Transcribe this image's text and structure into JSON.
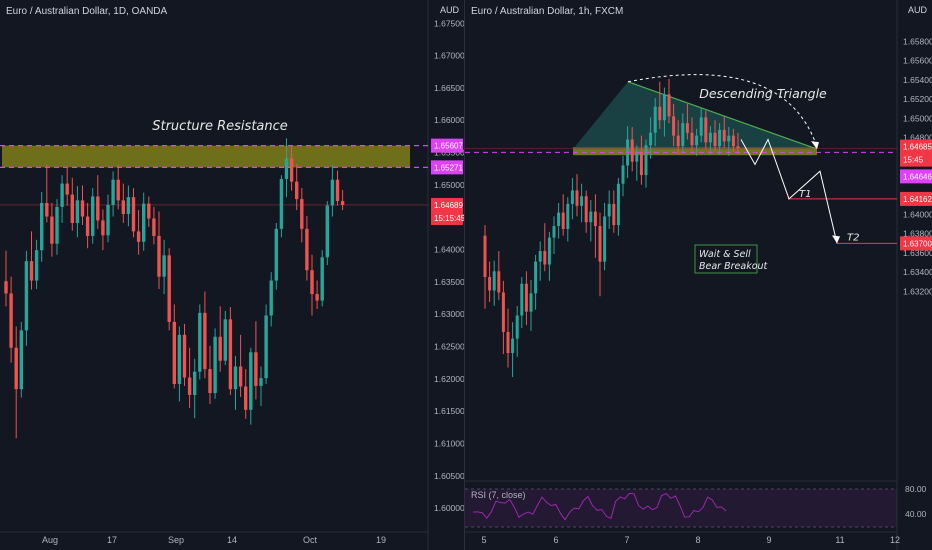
{
  "left_chart": {
    "title": "Euro / Australian Dollar, 1D, OANDA",
    "currency": "AUD",
    "annotation": "Structure Resistance",
    "price_tags": [
      {
        "value": "1.65607",
        "color": "#e040fb",
        "text_color": "#ffffff"
      },
      {
        "value": "1.65271",
        "color": "#e040fb",
        "text_color": "#ffffff"
      },
      {
        "value": "1.64689",
        "color": "#f23645",
        "text_color": "#ffffff"
      },
      {
        "value": "15:15:45",
        "color": "#f23645",
        "text_color": "#ffffff"
      }
    ]
  },
  "right_chart": {
    "title": "Euro / Australian Dollar, 1h, FXCM",
    "currency": "AUD",
    "pattern_label": "Descending Triangle",
    "note_line1": "Wait & Sell",
    "note_line2": "Bear Breakout",
    "target1": "T1",
    "target2": "T2",
    "rsi_label": "RSI (7, close)",
    "price_tags": [
      {
        "value": "1.64685",
        "color": "#f23645",
        "text_color": "#ffffff"
      },
      {
        "value": "15:45",
        "color": "#f23645",
        "text_color": "#ffffff"
      },
      {
        "value": "1.64646",
        "color": "#e040fb",
        "text_color": "#ffffff"
      },
      {
        "value": "1.64162",
        "color": "#f23645",
        "text_color": "#ffffff"
      },
      {
        "value": "1.63700",
        "color": "#f23645",
        "text_color": "#ffffff"
      }
    ],
    "rsi_ticks": [
      "80.00",
      "40.00"
    ]
  },
  "colors": {
    "up": "#26a69a",
    "down": "#ef5350",
    "zone_fill": "#8d8e1a",
    "zone_dash": "#e040fb",
    "triangle_fill": "#1e5e5a",
    "triangle_edge": "#4caf50",
    "rsi": "#9c27b0"
  },
  "chart_data": [
    {
      "type": "candlestick",
      "title": "Euro / Australian Dollar, 1D, OANDA",
      "ylabel": "AUD",
      "ylim": [
        1.5963,
        1.6786
      ],
      "y_ticks": [
        1.6,
        1.605,
        1.61,
        1.615,
        1.62,
        1.625,
        1.63,
        1.635,
        1.64,
        1.645,
        1.65,
        1.655,
        1.66,
        1.665,
        1.67,
        1.675
      ],
      "x_ticks": [
        "Aug",
        "17",
        "Sep",
        "14",
        "Oct",
        "19"
      ],
      "zones": [
        {
          "label": "Structure Resistance",
          "from": 1.65271,
          "to": 1.65607
        }
      ],
      "levels": [
        {
          "value": 1.64689,
          "label": "1.64689"
        }
      ],
      "series": [
        {
          "name": "EURAUD",
          "ohlc": [
            [
              1.6351,
              1.6398,
              1.6312,
              1.6332
            ],
            [
              1.6332,
              1.6358,
              1.6225,
              1.6248
            ],
            [
              1.6248,
              1.6281,
              1.6108,
              1.6184
            ],
            [
              1.6184,
              1.6288,
              1.6171,
              1.6275
            ],
            [
              1.6275,
              1.6398,
              1.6251,
              1.6382
            ],
            [
              1.6382,
              1.6428,
              1.6338,
              1.6352
            ],
            [
              1.6352,
              1.6415,
              1.6339,
              1.6399
            ],
            [
              1.6399,
              1.6489,
              1.6381,
              1.6472
            ],
            [
              1.6472,
              1.6531,
              1.6442,
              1.6451
            ],
            [
              1.6451,
              1.6472,
              1.6389,
              1.6409
            ],
            [
              1.6409,
              1.6478,
              1.6392,
              1.6466
            ],
            [
              1.6466,
              1.6515,
              1.6441,
              1.6502
            ],
            [
              1.6502,
              1.6528,
              1.6468,
              1.6485
            ],
            [
              1.6485,
              1.6511,
              1.6429,
              1.6441
            ],
            [
              1.6441,
              1.6498,
              1.6419,
              1.6476
            ],
            [
              1.6476,
              1.6499,
              1.6438,
              1.6451
            ],
            [
              1.6451,
              1.6472,
              1.6402,
              1.6421
            ],
            [
              1.6421,
              1.6495,
              1.6409,
              1.6482
            ],
            [
              1.6482,
              1.6515,
              1.6432,
              1.6445
            ],
            [
              1.6445,
              1.6462,
              1.6399,
              1.6422
            ],
            [
              1.6422,
              1.6485,
              1.6411,
              1.6469
            ],
            [
              1.6469,
              1.6521,
              1.6451,
              1.6508
            ],
            [
              1.6508,
              1.6531,
              1.6462,
              1.6476
            ],
            [
              1.6476,
              1.6502,
              1.6441,
              1.6455
            ],
            [
              1.6455,
              1.6499,
              1.6436,
              1.6481
            ],
            [
              1.6481,
              1.6495,
              1.6419,
              1.6428
            ],
            [
              1.6428,
              1.6461,
              1.6392,
              1.6412
            ],
            [
              1.6412,
              1.6488,
              1.6398,
              1.6471
            ],
            [
              1.6471,
              1.6482,
              1.6435,
              1.6448
            ],
            [
              1.6448,
              1.6466,
              1.6408,
              1.6421
            ],
            [
              1.6421,
              1.6459,
              1.6339,
              1.6358
            ],
            [
              1.6358,
              1.6415,
              1.6331,
              1.6391
            ],
            [
              1.6391,
              1.6402,
              1.6275,
              1.6288
            ],
            [
              1.6288,
              1.6315,
              1.6185,
              1.6192
            ],
            [
              1.6192,
              1.6281,
              1.6165,
              1.6268
            ],
            [
              1.6268,
              1.6285,
              1.6189,
              1.6202
            ],
            [
              1.6202,
              1.6248,
              1.6155,
              1.6175
            ],
            [
              1.6175,
              1.6231,
              1.6139,
              1.6211
            ],
            [
              1.6211,
              1.6315,
              1.6199,
              1.6302
            ],
            [
              1.6302,
              1.6335,
              1.6201,
              1.6215
            ],
            [
              1.6215,
              1.6251,
              1.6161,
              1.6178
            ],
            [
              1.6178,
              1.6278,
              1.6169,
              1.6265
            ],
            [
              1.6265,
              1.6312,
              1.6211,
              1.6228
            ],
            [
              1.6228,
              1.6305,
              1.6221,
              1.6292
            ],
            [
              1.6292,
              1.6311,
              1.6175,
              1.6184
            ],
            [
              1.6184,
              1.6235,
              1.6152,
              1.6219
            ],
            [
              1.6219,
              1.6268,
              1.6172,
              1.6188
            ],
            [
              1.6188,
              1.6215,
              1.6138,
              1.6152
            ],
            [
              1.6152,
              1.6248,
              1.6129,
              1.6241
            ],
            [
              1.6241,
              1.6289,
              1.6168,
              1.6189
            ],
            [
              1.6189,
              1.6219,
              1.6158,
              1.6201
            ],
            [
              1.6201,
              1.6315,
              1.6192,
              1.6298
            ],
            [
              1.6298,
              1.6365,
              1.6281,
              1.6352
            ],
            [
              1.6352,
              1.6441,
              1.6338,
              1.6432
            ],
            [
              1.6432,
              1.6515,
              1.6419,
              1.6509
            ],
            [
              1.6509,
              1.6572,
              1.6481,
              1.6541
            ],
            [
              1.6541,
              1.6561,
              1.6491,
              1.6505
            ],
            [
              1.6505,
              1.6532,
              1.6461,
              1.6478
            ],
            [
              1.6478,
              1.6495,
              1.6411,
              1.6432
            ],
            [
              1.6432,
              1.6452,
              1.6352,
              1.6368
            ],
            [
              1.6368,
              1.6392,
              1.6298,
              1.6331
            ],
            [
              1.6331,
              1.6352,
              1.6308,
              1.6321
            ],
            [
              1.6321,
              1.6399,
              1.6312,
              1.6388
            ],
            [
              1.6388,
              1.6475,
              1.6376,
              1.6468
            ],
            [
              1.6468,
              1.6531,
              1.6451,
              1.6508
            ],
            [
              1.6508,
              1.6522,
              1.6468,
              1.6475
            ],
            [
              1.6475,
              1.6492,
              1.6461,
              1.6469
            ]
          ]
        }
      ]
    },
    {
      "type": "candlestick",
      "title": "Euro / Australian Dollar, 1h, FXCM",
      "ylabel": "AUD",
      "ylim": [
        1.6124,
        1.6623
      ],
      "y_ticks": [
        1.632,
        1.634,
        1.636,
        1.638,
        1.64,
        1.642,
        1.644,
        1.646,
        1.648,
        1.65,
        1.652,
        1.654,
        1.656,
        1.658
      ],
      "x_ticks": [
        "5",
        "6",
        "7",
        "8",
        "9",
        "11",
        "12"
      ],
      "annotations": [
        "Descending Triangle",
        "Wait & Sell Bear Breakout",
        "T1",
        "T2"
      ],
      "zones": [
        {
          "from": 1.6462,
          "to": 1.647
        }
      ],
      "levels": [
        {
          "value": 1.64685,
          "label": "1.64685"
        },
        {
          "value": 1.64646,
          "label": "1.64646"
        },
        {
          "value": 1.64162,
          "label": "1.64162"
        },
        {
          "value": 1.637,
          "label": "1.63700"
        }
      ],
      "series": [
        {
          "name": "EURAUD",
          "ohlc": [
            [
              1.6378,
              1.6389,
              1.6302,
              1.6335
            ],
            [
              1.6335,
              1.6351,
              1.6309,
              1.6321
            ],
            [
              1.6321,
              1.6352,
              1.6305,
              1.6341
            ],
            [
              1.6341,
              1.6362,
              1.6311,
              1.6319
            ],
            [
              1.6319,
              1.6331,
              1.6255,
              1.6278
            ],
            [
              1.6278,
              1.6302,
              1.6241,
              1.6256
            ],
            [
              1.6256,
              1.6288,
              1.6231,
              1.6271
            ],
            [
              1.6271,
              1.6305,
              1.6252,
              1.6295
            ],
            [
              1.6295,
              1.6335,
              1.6282,
              1.6328
            ],
            [
              1.6328,
              1.6341,
              1.6285,
              1.6299
            ],
            [
              1.6299,
              1.6332,
              1.6279,
              1.6318
            ],
            [
              1.6318,
              1.6358,
              1.6301,
              1.6351
            ],
            [
              1.6351,
              1.6372,
              1.6331,
              1.6362
            ],
            [
              1.6362,
              1.6391,
              1.6341,
              1.6348
            ],
            [
              1.6348,
              1.6382,
              1.6331,
              1.6376
            ],
            [
              1.6376,
              1.6398,
              1.6359,
              1.6388
            ],
            [
              1.6388,
              1.6412,
              1.6375,
              1.6402
            ],
            [
              1.6402,
              1.6421,
              1.6378,
              1.6385
            ],
            [
              1.6385,
              1.6418,
              1.6372,
              1.6411
            ],
            [
              1.6411,
              1.6438,
              1.6395,
              1.6425
            ],
            [
              1.6425,
              1.6442,
              1.6398,
              1.6409
            ],
            [
              1.6409,
              1.6432,
              1.6392,
              1.6419
            ],
            [
              1.6419,
              1.6425,
              1.6381,
              1.6392
            ],
            [
              1.6392,
              1.6415,
              1.6372,
              1.6403
            ],
            [
              1.6403,
              1.6421,
              1.6355,
              1.6388
            ],
            [
              1.6388,
              1.6402,
              1.6315,
              1.6351
            ],
            [
              1.6351,
              1.6412,
              1.6342,
              1.6398
            ],
            [
              1.6398,
              1.6425,
              1.6385,
              1.6411
            ],
            [
              1.6411,
              1.6425,
              1.6381,
              1.6389
            ],
            [
              1.6389,
              1.6438,
              1.6378,
              1.6432
            ],
            [
              1.6432,
              1.6461,
              1.6419,
              1.6451
            ],
            [
              1.6451,
              1.6492,
              1.6438,
              1.6478
            ],
            [
              1.6478,
              1.6491,
              1.6445,
              1.6455
            ],
            [
              1.6455,
              1.6472,
              1.6435,
              1.6465
            ],
            [
              1.6465,
              1.6482,
              1.6431,
              1.6441
            ],
            [
              1.6441,
              1.6478,
              1.6428,
              1.6472
            ],
            [
              1.6472,
              1.6501,
              1.6458,
              1.6485
            ],
            [
              1.6485,
              1.6521,
              1.6471,
              1.6512
            ],
            [
              1.6512,
              1.6538,
              1.6489,
              1.6498
            ],
            [
              1.6498,
              1.6532,
              1.6481,
              1.6525
            ],
            [
              1.6525,
              1.6541,
              1.6495,
              1.6502
            ],
            [
              1.6502,
              1.6515,
              1.6471,
              1.6482
            ],
            [
              1.6482,
              1.6498,
              1.6462,
              1.6471
            ],
            [
              1.6471,
              1.6505,
              1.6465,
              1.6495
            ],
            [
              1.6495,
              1.6515,
              1.6478,
              1.6485
            ],
            [
              1.6485,
              1.6501,
              1.6466,
              1.6472
            ],
            [
              1.6472,
              1.6489,
              1.6461,
              1.6482
            ],
            [
              1.6482,
              1.6511,
              1.6475,
              1.6501
            ],
            [
              1.6501,
              1.6508,
              1.6468,
              1.6475
            ],
            [
              1.6475,
              1.6492,
              1.6462,
              1.6485
            ],
            [
              1.6485,
              1.6498,
              1.6466,
              1.6471
            ],
            [
              1.6471,
              1.6495,
              1.6462,
              1.6488
            ],
            [
              1.6488,
              1.6502,
              1.6469,
              1.6476
            ],
            [
              1.6476,
              1.6491,
              1.6461,
              1.6482
            ],
            [
              1.6482,
              1.6489,
              1.6465,
              1.6471
            ],
            [
              1.6471,
              1.6485,
              1.6463,
              1.6469
            ]
          ]
        }
      ]
    }
  ]
}
